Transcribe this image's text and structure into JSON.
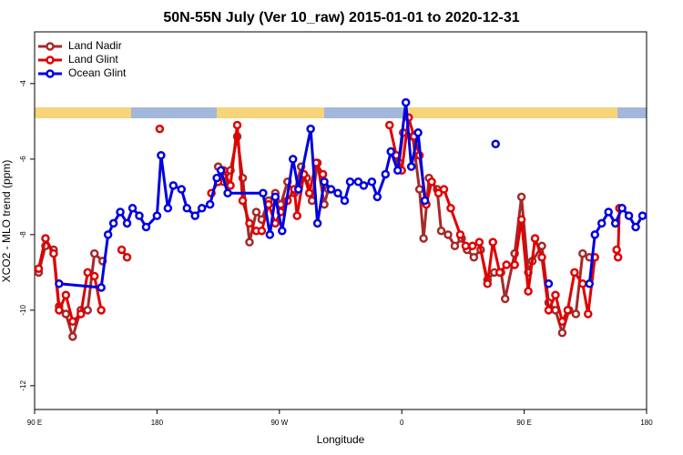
{
  "chart_data": {
    "type": "line",
    "title": "50N-55N July (Ver 10_raw)   2015-01-01 to 2020-12-31",
    "x_label": "Longitude",
    "y_label": "XCO2 - MLO trend (ppm)",
    "xlim": [
      90,
      540
    ],
    "ylim": [
      -12.63,
      -2.63
    ],
    "xticks": [
      {
        "value": 90,
        "label": "90 E"
      },
      {
        "value": 180,
        "label": "180"
      },
      {
        "value": 270,
        "label": "90 W"
      },
      {
        "value": 360,
        "label": "0"
      },
      {
        "value": 450,
        "label": "90 E"
      },
      {
        "value": 540,
        "label": "180"
      }
    ],
    "yticks": [
      -4,
      -6,
      -8,
      -10,
      -12
    ],
    "legend": "upper left",
    "series": [
      {
        "name": "Land Nadir",
        "color": "#a52a2a",
        "x": [
          93,
          98,
          104,
          108,
          113,
          118,
          124,
          129,
          134,
          140,
          null,
          225,
          229,
          234,
          239,
          243,
          248,
          253,
          257,
          262,
          267,
          271,
          276,
          281,
          286,
          290,
          294,
          298,
          303,
          306,
          null,
          352,
          358,
          361,
          368,
          373,
          376,
          380,
          386,
          389,
          394,
          399,
          404,
          408,
          413,
          418,
          423,
          428,
          433,
          436,
          443,
          448,
          453,
          456,
          463,
          468,
          473,
          478,
          483,
          488,
          493,
          498
        ],
        "values": [
          -9.0,
          -8.3,
          -8.4,
          -9.9,
          -10.1,
          -10.7,
          -10.0,
          -10.0,
          -8.5,
          -8.7,
          null,
          -6.2,
          -6.6,
          -6.3,
          -5.4,
          -6.5,
          -8.2,
          -7.4,
          -7.6,
          -7.1,
          -6.9,
          -7.2,
          -6.6,
          -6.9,
          -6.2,
          -6.5,
          -7.1,
          -6.1,
          -7.2,
          -6.8,
          null,
          -5.8,
          -6.1,
          -5.3,
          -5.4,
          -6.8,
          -8.1,
          -6.5,
          -6.8,
          -7.9,
          -8.0,
          -8.3,
          -8.1,
          -8.4,
          -8.6,
          -8.4,
          -9.2,
          -9.0,
          -9.0,
          -9.7,
          -8.5,
          -7.0,
          -9.0,
          -8.7,
          -8.3,
          -9.8,
          -10.0,
          -10.6,
          -10.0,
          -10.1,
          -8.5,
          -8.6
        ]
      },
      {
        "name": "Land Glint",
        "color": "#e00000",
        "x": [
          93,
          98,
          104,
          108,
          113,
          118,
          124,
          129,
          134,
          139,
          null,
          154,
          158,
          null,
          182,
          null,
          220,
          225,
          229,
          234,
          239,
          243,
          248,
          253,
          257,
          262,
          267,
          271,
          276,
          281,
          283,
          288,
          292,
          297,
          302,
          null,
          351,
          356,
          360,
          365,
          369,
          373,
          378,
          382,
          387,
          391,
          396,
          403,
          407,
          412,
          417,
          423,
          427,
          432,
          437,
          443,
          448,
          453,
          458,
          463,
          468,
          473,
          478,
          482,
          487,
          493,
          497,
          502,
          null,
          518,
          519,
          520
        ],
        "values": [
          -8.9,
          -8.1,
          -8.5,
          -10.0,
          -9.6,
          -10.3,
          -10.1,
          -9.0,
          -9.1,
          -10.0,
          null,
          -8.4,
          -8.6,
          null,
          -5.2,
          null,
          -6.9,
          -6.6,
          -6.3,
          -6.7,
          -5.1,
          -7.1,
          -7.7,
          -7.9,
          -7.9,
          -7.2,
          -7.7,
          -7.4,
          -7.1,
          -6.8,
          -7.5,
          -6.4,
          -6.9,
          -6.1,
          -6.4,
          null,
          -5.1,
          -5.9,
          -6.3,
          -4.9,
          -5.4,
          -5.9,
          -7.2,
          -6.6,
          -6.9,
          -6.8,
          -7.3,
          -8.0,
          -8.3,
          -8.3,
          -8.2,
          -9.3,
          -8.2,
          -9.0,
          -8.8,
          -8.8,
          -7.6,
          -9.5,
          -8.1,
          -8.6,
          -10.0,
          -9.6,
          -10.3,
          -10.0,
          -9.0,
          -9.3,
          -10.1,
          -8.6,
          null,
          -8.4,
          -8.6,
          -7.3
        ]
      },
      {
        "name": "Ocean Glint",
        "color": "#0000e0",
        "x": [
          108,
          139,
          144,
          148,
          153,
          158,
          162,
          167,
          172,
          180,
          183,
          188,
          192,
          198,
          202,
          208,
          213,
          219,
          224,
          227,
          232,
          258,
          263,
          267,
          272,
          280,
          284,
          293,
          298,
          303,
          308,
          313,
          318,
          322,
          328,
          332,
          338,
          342,
          348,
          352,
          357,
          363,
          367,
          372,
          377,
          null,
          429,
          null,
          468,
          null,
          498,
          502,
          507,
          512,
          517,
          522,
          527,
          532,
          537
        ],
        "values": [
          -9.3,
          -9.4,
          -8.0,
          -7.7,
          -7.4,
          -7.7,
          -7.3,
          -7.5,
          -7.8,
          -7.5,
          -5.9,
          -7.3,
          -6.7,
          -6.8,
          -7.3,
          -7.5,
          -7.3,
          -7.2,
          -6.5,
          -6.3,
          -6.9,
          -6.9,
          -8.0,
          -7.0,
          -7.9,
          -6.0,
          -6.8,
          -5.2,
          -7.7,
          -6.6,
          -6.8,
          -6.9,
          -7.1,
          -6.6,
          -6.6,
          -6.7,
          -6.6,
          -7.0,
          -6.4,
          -5.8,
          -6.3,
          -4.5,
          -6.2,
          -5.3,
          -7.1,
          null,
          -5.6,
          null,
          -9.3,
          null,
          -9.3,
          -8.0,
          -7.7,
          -7.4,
          -7.7,
          -7.3,
          -7.5,
          -7.8,
          -7.5
        ]
      }
    ]
  }
}
